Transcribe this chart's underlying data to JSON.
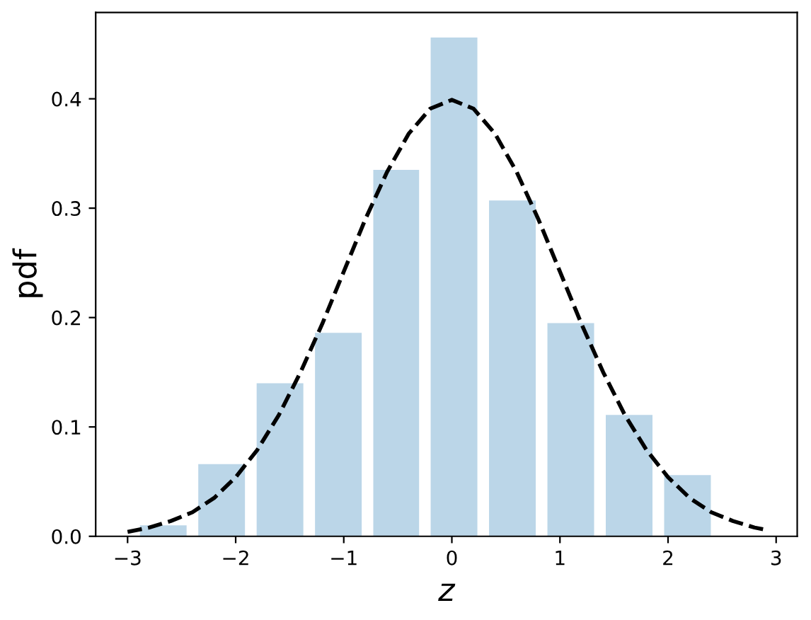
{
  "chart_data": {
    "type": "histogram",
    "xlabel": "z",
    "ylabel": "pdf",
    "bins": [
      -2.94,
      -2.4,
      -1.86,
      -1.32,
      -0.78,
      -0.25,
      0.29,
      0.83,
      1.37,
      1.91,
      2.45
    ],
    "series": [
      {
        "color": "#bbd6e8",
        "values": [
          0.01,
          0.066,
          0.14,
          0.186,
          0.335,
          0.456,
          0.307,
          0.195,
          0.111,
          0.056
        ]
      },
      {
        "type": "line",
        "color": "#000000",
        "line_style": "dashed",
        "x": [
          -3.0,
          -2.8,
          -2.6,
          -2.4,
          -2.2,
          -2.0,
          -1.8,
          -1.6,
          -1.4,
          -1.2,
          -1.0,
          -0.8,
          -0.6,
          -0.4,
          -0.2,
          0.0,
          0.2,
          0.4,
          0.6,
          0.8,
          1.0,
          1.2,
          1.4,
          1.6,
          1.8,
          2.0,
          2.2,
          2.4,
          2.6,
          2.8,
          2.9
        ],
        "values": [
          0.004,
          0.008,
          0.014,
          0.022,
          0.035,
          0.054,
          0.079,
          0.111,
          0.15,
          0.194,
          0.242,
          0.29,
          0.333,
          0.368,
          0.391,
          0.399,
          0.391,
          0.368,
          0.333,
          0.29,
          0.242,
          0.194,
          0.15,
          0.111,
          0.079,
          0.054,
          0.035,
          0.022,
          0.014,
          0.008,
          0.006
        ]
      }
    ],
    "xlim": [
      -3.295,
      3.195
    ],
    "ylim": [
      0,
      0.479
    ],
    "xticks": [
      {
        "value": -3,
        "label": "−3"
      },
      {
        "value": -2,
        "label": "−2"
      },
      {
        "value": -1,
        "label": "−1"
      },
      0,
      1,
      2,
      3
    ],
    "yticks": [
      {
        "value": 0,
        "label": "0.0"
      },
      0.1,
      0.2,
      0.3,
      0.4
    ],
    "grid": false,
    "legend": false
  }
}
